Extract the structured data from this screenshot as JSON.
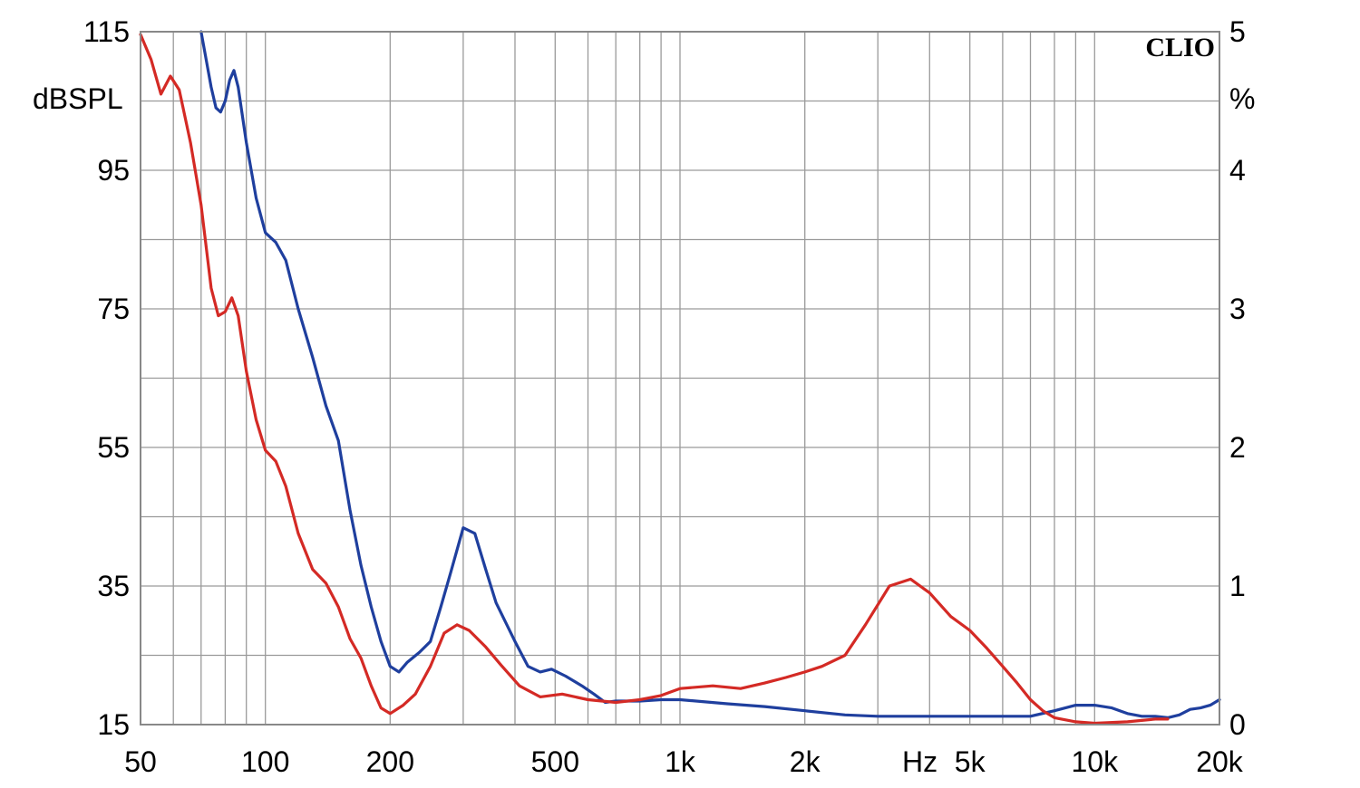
{
  "chart_data": {
    "type": "line",
    "brand_label": "CLIO",
    "x_axis": {
      "scale": "log",
      "range": [
        50,
        20000
      ],
      "unit_label": "Hz",
      "ticks": [
        {
          "value": 50,
          "label": "50"
        },
        {
          "value": 100,
          "label": "100"
        },
        {
          "value": 200,
          "label": "200"
        },
        {
          "value": 500,
          "label": "500"
        },
        {
          "value": 1000,
          "label": "1k"
        },
        {
          "value": 2000,
          "label": "2k"
        },
        {
          "value": 5000,
          "label": "5k"
        },
        {
          "value": 10000,
          "label": "10k"
        },
        {
          "value": 20000,
          "label": "20k"
        }
      ],
      "gridlines": [
        50,
        60,
        70,
        80,
        90,
        100,
        200,
        300,
        400,
        500,
        600,
        700,
        800,
        900,
        1000,
        2000,
        3000,
        4000,
        5000,
        6000,
        7000,
        8000,
        9000,
        10000,
        20000
      ]
    },
    "y_left": {
      "label": "dBSPL",
      "range": [
        15,
        115
      ],
      "ticks": [
        115,
        95,
        75,
        55,
        35,
        15
      ],
      "gridlines": [
        15,
        25,
        35,
        45,
        55,
        65,
        75,
        85,
        95,
        105,
        115
      ]
    },
    "y_right": {
      "label": "%",
      "range": [
        0,
        5
      ],
      "ticks": [
        5,
        4,
        3,
        2,
        1,
        0
      ]
    },
    "grid": true,
    "series": [
      {
        "color": "#1f3f9e",
        "axis": "right",
        "points": [
          [
            70,
            5.0
          ],
          [
            74,
            4.6
          ],
          [
            76,
            4.45
          ],
          [
            78,
            4.42
          ],
          [
            80,
            4.5
          ],
          [
            82,
            4.65
          ],
          [
            84,
            4.72
          ],
          [
            86,
            4.6
          ],
          [
            90,
            4.2
          ],
          [
            95,
            3.8
          ],
          [
            100,
            3.55
          ],
          [
            106,
            3.48
          ],
          [
            112,
            3.35
          ],
          [
            120,
            3.0
          ],
          [
            130,
            2.65
          ],
          [
            140,
            2.3
          ],
          [
            150,
            2.05
          ],
          [
            160,
            1.55
          ],
          [
            170,
            1.15
          ],
          [
            180,
            0.85
          ],
          [
            190,
            0.6
          ],
          [
            200,
            0.42
          ],
          [
            210,
            0.38
          ],
          [
            220,
            0.45
          ],
          [
            235,
            0.52
          ],
          [
            250,
            0.6
          ],
          [
            265,
            0.85
          ],
          [
            280,
            1.1
          ],
          [
            300,
            1.42
          ],
          [
            320,
            1.38
          ],
          [
            340,
            1.12
          ],
          [
            360,
            0.88
          ],
          [
            400,
            0.6
          ],
          [
            430,
            0.42
          ],
          [
            460,
            0.38
          ],
          [
            490,
            0.4
          ],
          [
            530,
            0.35
          ],
          [
            580,
            0.28
          ],
          [
            620,
            0.22
          ],
          [
            660,
            0.16
          ],
          [
            700,
            0.17
          ],
          [
            800,
            0.17
          ],
          [
            900,
            0.18
          ],
          [
            1000,
            0.18
          ],
          [
            1300,
            0.15
          ],
          [
            1600,
            0.13
          ],
          [
            2000,
            0.1
          ],
          [
            2500,
            0.07
          ],
          [
            3000,
            0.06
          ],
          [
            4000,
            0.06
          ],
          [
            5000,
            0.06
          ],
          [
            6000,
            0.06
          ],
          [
            7000,
            0.06
          ],
          [
            8000,
            0.1
          ],
          [
            9000,
            0.14
          ],
          [
            10000,
            0.14
          ],
          [
            11000,
            0.12
          ],
          [
            12000,
            0.08
          ],
          [
            13000,
            0.06
          ],
          [
            14000,
            0.06
          ],
          [
            15000,
            0.05
          ],
          [
            16000,
            0.07
          ],
          [
            17000,
            0.11
          ],
          [
            18000,
            0.12
          ],
          [
            19000,
            0.14
          ],
          [
            20000,
            0.18
          ]
        ]
      },
      {
        "color": "#d42a25",
        "axis": "right",
        "points": [
          [
            50,
            4.98
          ],
          [
            53,
            4.8
          ],
          [
            56,
            4.55
          ],
          [
            59,
            4.68
          ],
          [
            62,
            4.58
          ],
          [
            66,
            4.2
          ],
          [
            70,
            3.75
          ],
          [
            74,
            3.15
          ],
          [
            77,
            2.95
          ],
          [
            80,
            2.98
          ],
          [
            83,
            3.08
          ],
          [
            86,
            2.95
          ],
          [
            90,
            2.55
          ],
          [
            95,
            2.2
          ],
          [
            100,
            1.98
          ],
          [
            106,
            1.9
          ],
          [
            112,
            1.72
          ],
          [
            120,
            1.38
          ],
          [
            130,
            1.12
          ],
          [
            140,
            1.02
          ],
          [
            150,
            0.85
          ],
          [
            160,
            0.62
          ],
          [
            170,
            0.48
          ],
          [
            180,
            0.28
          ],
          [
            190,
            0.12
          ],
          [
            200,
            0.08
          ],
          [
            215,
            0.14
          ],
          [
            230,
            0.22
          ],
          [
            250,
            0.42
          ],
          [
            270,
            0.66
          ],
          [
            290,
            0.72
          ],
          [
            310,
            0.68
          ],
          [
            340,
            0.56
          ],
          [
            370,
            0.43
          ],
          [
            410,
            0.28
          ],
          [
            460,
            0.2
          ],
          [
            520,
            0.22
          ],
          [
            600,
            0.18
          ],
          [
            700,
            0.16
          ],
          [
            800,
            0.18
          ],
          [
            900,
            0.21
          ],
          [
            1000,
            0.26
          ],
          [
            1200,
            0.28
          ],
          [
            1400,
            0.26
          ],
          [
            1600,
            0.3
          ],
          [
            1800,
            0.34
          ],
          [
            2000,
            0.38
          ],
          [
            2200,
            0.42
          ],
          [
            2500,
            0.5
          ],
          [
            2800,
            0.72
          ],
          [
            3200,
            1.0
          ],
          [
            3600,
            1.05
          ],
          [
            4000,
            0.95
          ],
          [
            4500,
            0.78
          ],
          [
            5000,
            0.68
          ],
          [
            5500,
            0.55
          ],
          [
            6000,
            0.42
          ],
          [
            6500,
            0.3
          ],
          [
            7000,
            0.18
          ],
          [
            7500,
            0.1
          ],
          [
            8000,
            0.05
          ],
          [
            9000,
            0.02
          ],
          [
            10000,
            0.01
          ],
          [
            12000,
            0.02
          ],
          [
            14000,
            0.04
          ],
          [
            15000,
            0.04
          ]
        ]
      }
    ]
  }
}
